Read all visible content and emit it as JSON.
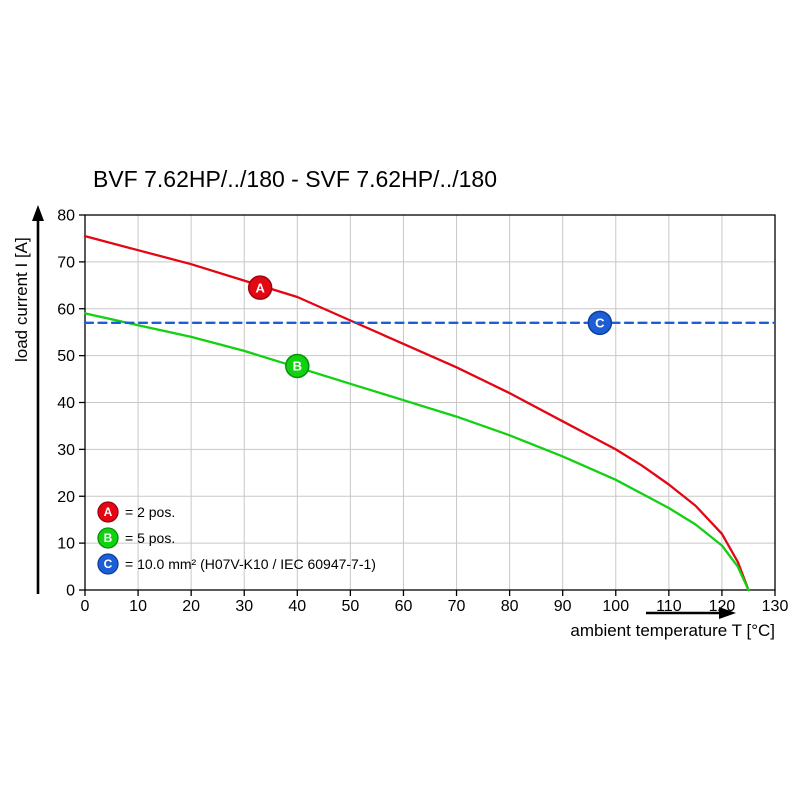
{
  "chart_data": {
    "type": "line",
    "title": "BVF 7.62HP/../180 - SVF 7.62HP/../180",
    "xlabel": "ambient temperature T [°C]",
    "ylabel": "load current I [A]",
    "xlim": [
      0,
      130
    ],
    "ylim": [
      0,
      80
    ],
    "xticks": [
      0,
      10,
      20,
      30,
      40,
      50,
      60,
      70,
      80,
      90,
      100,
      110,
      120,
      130
    ],
    "yticks": [
      0,
      10,
      20,
      30,
      40,
      50,
      60,
      70,
      80
    ],
    "grid": true,
    "legend_position": "lower-left inside plot",
    "series": [
      {
        "id": "A",
        "legend_label": "= 2 pos.",
        "color": "#e30613",
        "edge_color": "#9c0410",
        "line_style": "solid",
        "x": [
          0,
          10,
          20,
          30,
          40,
          50,
          60,
          70,
          80,
          90,
          100,
          105,
          110,
          115,
          120,
          123,
          125
        ],
        "y": [
          75.5,
          72.5,
          69.5,
          66,
          62.5,
          57.5,
          52.5,
          47.5,
          42,
          36,
          30,
          26.5,
          22.5,
          18,
          12,
          6,
          0
        ],
        "marker": {
          "letter": "A",
          "x": 33,
          "y": 64.5
        }
      },
      {
        "id": "B",
        "legend_label": "= 5 pos.",
        "color": "#11d111",
        "edge_color": "#079107",
        "line_style": "solid",
        "x": [
          0,
          10,
          20,
          30,
          40,
          50,
          60,
          70,
          80,
          90,
          100,
          105,
          110,
          115,
          120,
          123,
          125
        ],
        "y": [
          59,
          56.5,
          54,
          51,
          47.5,
          44,
          40.5,
          37,
          33,
          28.5,
          23.5,
          20.5,
          17.5,
          14,
          9.5,
          5,
          0
        ],
        "marker": {
          "letter": "B",
          "x": 40,
          "y": 47.8
        }
      },
      {
        "id": "C",
        "legend_label": "= 10.0 mm² (H07V-K10 / IEC 60947-7-1)",
        "color": "#1c5ed6",
        "edge_color": "#0e3f9e",
        "line_style": "dashed",
        "x": [
          0,
          130
        ],
        "y": [
          57,
          57
        ],
        "marker": {
          "letter": "C",
          "x": 97,
          "y": 57
        }
      }
    ]
  }
}
